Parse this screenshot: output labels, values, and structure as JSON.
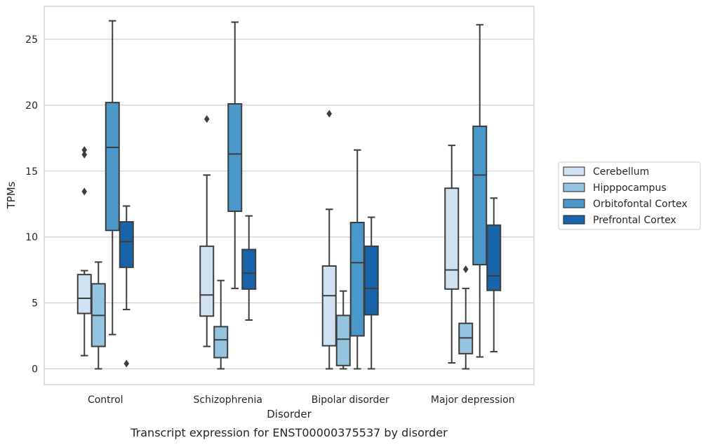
{
  "chart_data": {
    "type": "box",
    "title": "",
    "caption": "Transcript expression for ENST00000375537 by disorder",
    "xlabel": "Disorder",
    "ylabel": "TPMs",
    "ylim": [
      -1.2,
      27.5
    ],
    "yticks": [
      0,
      5,
      10,
      15,
      20,
      25
    ],
    "grid": "horizontal",
    "legend_position": "right",
    "categories": [
      "Control",
      "Schizophrenia",
      "Bipolar disorder",
      "Major depression"
    ],
    "series": [
      {
        "name": "Cerebellum",
        "color": "#d0e1f2",
        "boxes": [
          {
            "q1": 4.2,
            "median": 5.35,
            "q3": 7.15,
            "whisker_low": 1.0,
            "whisker_high": 7.45,
            "outliers": [
              16.6,
              16.25,
              13.45
            ]
          },
          {
            "q1": 4.0,
            "median": 5.6,
            "q3": 9.3,
            "whisker_low": 1.7,
            "whisker_high": 14.7,
            "outliers": [
              18.95
            ]
          },
          {
            "q1": 1.75,
            "median": 5.55,
            "q3": 7.8,
            "whisker_low": 0.0,
            "whisker_high": 12.1,
            "outliers": [
              19.35
            ]
          },
          {
            "q1": 6.05,
            "median": 7.5,
            "q3": 13.7,
            "whisker_low": 0.45,
            "whisker_high": 16.95,
            "outliers": []
          }
        ]
      },
      {
        "name": "Hipppocampus",
        "color": "#94c4df",
        "boxes": [
          {
            "q1": 1.7,
            "median": 4.05,
            "q3": 6.45,
            "whisker_low": 0.0,
            "whisker_high": 8.1,
            "outliers": []
          },
          {
            "q1": 0.85,
            "median": 2.2,
            "q3": 3.2,
            "whisker_low": 0.0,
            "whisker_high": 6.7,
            "outliers": []
          },
          {
            "q1": 0.25,
            "median": 2.25,
            "q3": 4.05,
            "whisker_low": 0.0,
            "whisker_high": 5.9,
            "outliers": []
          },
          {
            "q1": 1.15,
            "median": 2.35,
            "q3": 3.45,
            "whisker_low": 0.0,
            "whisker_high": 6.1,
            "outliers": [
              7.55
            ]
          }
        ]
      },
      {
        "name": "Orbitofontal Cortex",
        "color": "#4a98c9",
        "boxes": [
          {
            "q1": 10.5,
            "median": 16.8,
            "q3": 20.2,
            "whisker_low": 2.6,
            "whisker_high": 26.4,
            "outliers": []
          },
          {
            "q1": 11.95,
            "median": 16.3,
            "q3": 20.1,
            "whisker_low": 6.1,
            "whisker_high": 26.3,
            "outliers": []
          },
          {
            "q1": 2.5,
            "median": 8.05,
            "q3": 11.1,
            "whisker_low": 0.0,
            "whisker_high": 16.6,
            "outliers": []
          },
          {
            "q1": 7.9,
            "median": 14.7,
            "q3": 18.4,
            "whisker_low": 0.9,
            "whisker_high": 26.1,
            "outliers": []
          }
        ]
      },
      {
        "name": "Prefrontal Cortex",
        "color": "#1764ab",
        "boxes": [
          {
            "q1": 7.7,
            "median": 9.65,
            "q3": 11.15,
            "whisker_low": 4.5,
            "whisker_high": 12.35,
            "outliers": [
              0.4
            ]
          },
          {
            "q1": 6.05,
            "median": 7.25,
            "q3": 9.05,
            "whisker_low": 3.7,
            "whisker_high": 11.6,
            "outliers": []
          },
          {
            "q1": 4.1,
            "median": 6.1,
            "q3": 9.3,
            "whisker_low": 0.0,
            "whisker_high": 11.5,
            "outliers": []
          },
          {
            "q1": 5.95,
            "median": 7.05,
            "q3": 10.9,
            "whisker_low": 1.3,
            "whisker_high": 12.95,
            "outliers": []
          }
        ]
      }
    ]
  }
}
